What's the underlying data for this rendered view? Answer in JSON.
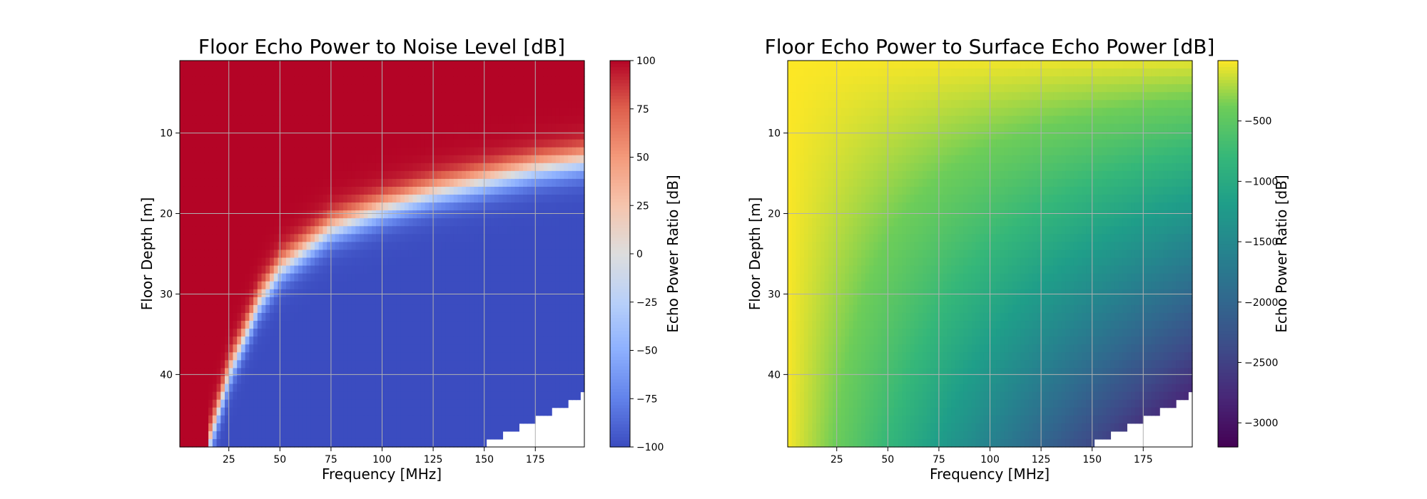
{
  "chart_data": [
    {
      "type": "heatmap",
      "title": "Floor Echo Power to Noise Level [dB]",
      "xlabel": "Frequency [MHz]",
      "ylabel": "Floor Depth [m]",
      "x_range": [
        1,
        199
      ],
      "y_range": [
        1,
        49
      ],
      "y_inverted": true,
      "x_ticks": [
        25,
        50,
        75,
        100,
        125,
        150,
        175
      ],
      "y_ticks": [
        10,
        20,
        30,
        40
      ],
      "grid": true,
      "colormap": "coolwarm",
      "colorbar": {
        "label": "Echo Power Ratio [dB]",
        "range": [
          -100,
          100
        ],
        "ticks": [
          100,
          75,
          50,
          25,
          0,
          -25,
          -50,
          -75,
          -100
        ]
      },
      "description_values": {
        "transition_depth_m": [
          [
            15,
            49
          ],
          [
            25,
            40
          ],
          [
            40,
            31
          ],
          [
            50,
            27
          ],
          [
            75,
            22
          ],
          [
            100,
            19.5
          ],
          [
            125,
            17.5
          ],
          [
            150,
            16
          ],
          [
            175,
            14.5
          ],
          [
            199,
            13.5
          ]
        ],
        "transition_width_m": 2.5,
        "no_data_region": "deep floor at high frequency (lower-right corner)"
      }
    },
    {
      "type": "heatmap",
      "title": "Floor Echo Power to Surface Echo Power [dB]",
      "xlabel": "Frequency [MHz]",
      "ylabel": "Floor Depth [m]",
      "x_range": [
        1,
        199
      ],
      "y_range": [
        1,
        49
      ],
      "y_inverted": true,
      "x_ticks": [
        25,
        50,
        75,
        100,
        125,
        150,
        175
      ],
      "y_ticks": [
        10,
        20,
        30,
        40
      ],
      "grid": true,
      "colormap": "viridis",
      "colorbar": {
        "label": "Echo Power Ratio [dB]",
        "range": [
          -3200,
          0
        ],
        "ticks": [
          -500,
          -1000,
          -1500,
          -2000,
          -2500,
          -3000
        ]
      },
      "description_values": {
        "model": "ratio ≈ -0.33 × frequency × depth",
        "no_data_region": "deep floor at high frequency (lower-right corner)"
      }
    }
  ],
  "labels": {
    "tick_format_minus": "−"
  }
}
